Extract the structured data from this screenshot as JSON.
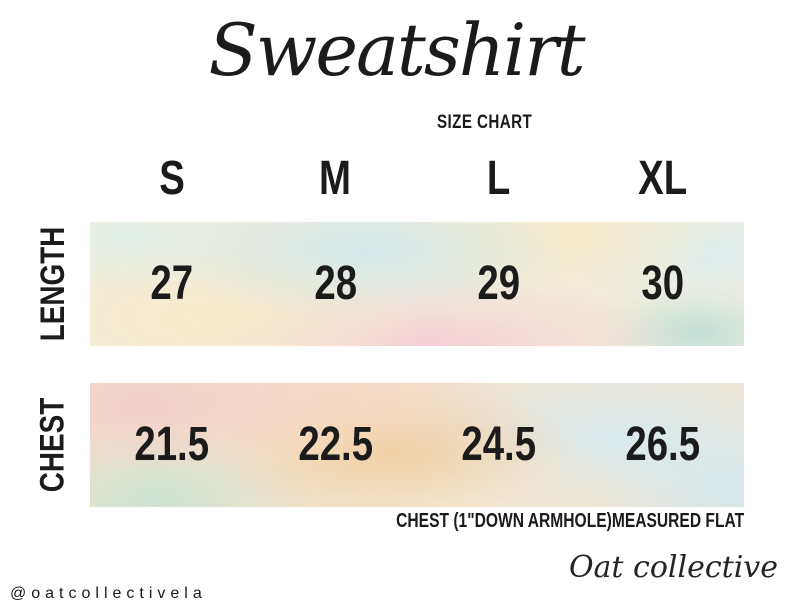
{
  "chart_data": {
    "type": "table",
    "title": "Sweatshirt",
    "subtitle": "SIZE CHART",
    "columns": [
      "S",
      "M",
      "L",
      "XL"
    ],
    "rows": [
      {
        "label": "LENGTH",
        "values": [
          27,
          28,
          29,
          30
        ]
      },
      {
        "label": "CHEST",
        "values": [
          21.5,
          22.5,
          24.5,
          26.5
        ]
      }
    ],
    "footnote": "CHEST (1\"DOWN ARMHOLE)MEASURED FLAT",
    "layout_hints": {
      "row_label_orientation": "rotated-90-ccw",
      "row_background": "pastel-watercolor-bands"
    }
  },
  "footer": {
    "social_handle": "@oatcollectivela",
    "brand_signature": "Oat collective"
  },
  "colors": {
    "ink": "#1b1b1b",
    "background": "#ffffff",
    "watercolor_palette": [
      "#d2e7ea",
      "#f7ecc8",
      "#f6cdd5",
      "#bfe0d8",
      "#f3cec8",
      "#f2ce a0",
      "#cce3d3",
      "#d8eaf0"
    ]
  }
}
